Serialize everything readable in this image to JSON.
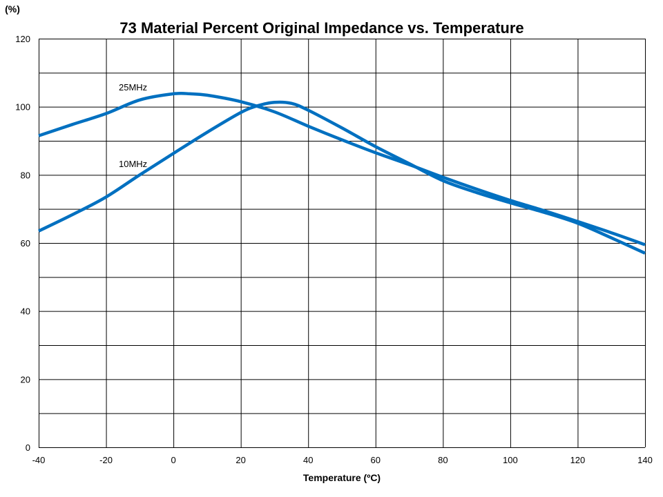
{
  "chart_data": {
    "type": "line",
    "title": "73 Material Percent Original Impedance vs. Temperature",
    "xlabel": "Temperature (ºC)",
    "ylabel": "(%)",
    "xlim": [
      -40,
      140
    ],
    "ylim": [
      0,
      120
    ],
    "xticks": [
      -40,
      -20,
      0,
      20,
      40,
      60,
      80,
      100,
      120,
      140
    ],
    "yticks": [
      0,
      20,
      40,
      60,
      80,
      100,
      120
    ],
    "grid": true,
    "legend": "none",
    "series_color": "#0070C0",
    "series": [
      {
        "name": "25MHz",
        "x": [
          -40,
          -30,
          -20,
          -10,
          0,
          5,
          10,
          20,
          30,
          40,
          50,
          60,
          70,
          80,
          90,
          100,
          110,
          120,
          130,
          140
        ],
        "y": [
          91.5,
          94.8,
          98,
          102,
          103.8,
          103.8,
          103.4,
          101.5,
          98.5,
          94.3,
          90.3,
          86.5,
          83,
          79.3,
          75.8,
          72.5,
          69.5,
          66.3,
          63,
          59.5
        ]
      },
      {
        "name": "10MHz",
        "x": [
          -40,
          -30,
          -20,
          -10,
          0,
          10,
          20,
          25,
          30,
          35,
          40,
          50,
          60,
          70,
          80,
          90,
          100,
          110,
          120,
          130,
          140
        ],
        "y": [
          63.5,
          68.3,
          73.5,
          80,
          86.3,
          92.5,
          98.3,
          100.3,
          101.3,
          101,
          99,
          93.8,
          88.3,
          83.3,
          78.3,
          74.8,
          71.8,
          69,
          65.8,
          61.5,
          57
        ]
      }
    ]
  }
}
